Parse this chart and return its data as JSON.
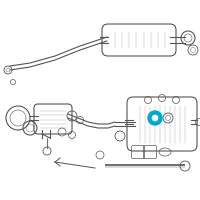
{
  "bg_color": "#ffffff",
  "line_color": "#555555",
  "highlight_color": "#00aacc",
  "fig_width": 2.0,
  "fig_height": 2.0,
  "dpi": 100
}
